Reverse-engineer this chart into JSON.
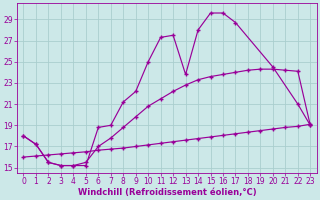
{
  "line1_x": [
    0,
    1,
    2,
    3,
    4,
    5,
    6,
    7,
    8,
    9,
    10,
    11,
    12,
    13,
    14,
    15,
    16,
    17,
    20,
    22,
    23
  ],
  "line1_y": [
    18.0,
    17.2,
    15.5,
    15.2,
    15.2,
    15.2,
    18.8,
    19.0,
    21.2,
    22.2,
    25.0,
    27.3,
    27.5,
    23.8,
    28.0,
    29.6,
    29.6,
    28.7,
    24.5,
    21.0,
    19.0
  ],
  "line2_x": [
    0,
    1,
    2,
    3,
    4,
    5,
    6,
    7,
    8,
    9,
    10,
    11,
    12,
    13,
    14,
    15,
    16,
    17,
    18,
    19,
    20,
    21,
    22,
    23
  ],
  "line2_y": [
    18.0,
    17.2,
    15.5,
    15.2,
    15.2,
    15.5,
    17.0,
    17.8,
    18.8,
    19.8,
    20.8,
    21.5,
    22.2,
    22.8,
    23.3,
    23.6,
    23.8,
    24.0,
    24.2,
    24.3,
    24.3,
    24.2,
    24.1,
    19.0
  ],
  "line3_x": [
    0,
    1,
    2,
    3,
    4,
    5,
    6,
    7,
    8,
    9,
    10,
    11,
    12,
    13,
    14,
    15,
    16,
    17,
    18,
    19,
    20,
    21,
    22,
    23
  ],
  "line3_y": [
    16.0,
    16.1,
    16.2,
    16.3,
    16.4,
    16.5,
    16.65,
    16.75,
    16.85,
    17.0,
    17.15,
    17.3,
    17.45,
    17.6,
    17.75,
    17.9,
    18.05,
    18.2,
    18.35,
    18.5,
    18.65,
    18.8,
    18.9,
    19.1
  ],
  "line_color": "#990099",
  "bg_color": "#cce8e8",
  "grid_color": "#aacece",
  "xlabel": "Windchill (Refroidissement éolien,°C)",
  "ylim": [
    14.5,
    30.5
  ],
  "xlim": [
    -0.5,
    23.5
  ],
  "yticks": [
    15,
    17,
    19,
    21,
    23,
    25,
    27,
    29
  ],
  "xticks": [
    0,
    1,
    2,
    3,
    4,
    5,
    6,
    7,
    8,
    9,
    10,
    11,
    12,
    13,
    14,
    15,
    16,
    17,
    18,
    19,
    20,
    21,
    22,
    23
  ],
  "xlabel_fontsize": 6.0,
  "tick_fontsize": 5.5
}
